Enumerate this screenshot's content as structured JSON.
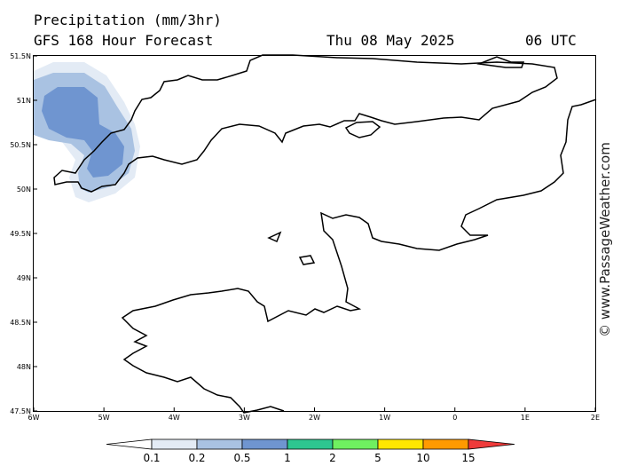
{
  "header": {
    "title_line1": "Precipitation (mm/3hr)",
    "title_line2": "GFS 168 Hour Forecast",
    "date": "Thu 08 May 2025",
    "time": "06 UTC"
  },
  "map": {
    "lat_ticks": [
      "51.5N",
      "51N",
      "50.5N",
      "50N",
      "49.5N",
      "49N",
      "48.5N",
      "48N",
      "47.5N"
    ],
    "lon_ticks": [
      "6W",
      "5W",
      "4W",
      "3W",
      "2W",
      "1W",
      "0",
      "1E",
      "2E"
    ],
    "extent": {
      "lon_min": -6,
      "lon_max": 2,
      "lat_min": 47.5,
      "lat_max": 51.5
    }
  },
  "colorbar": {
    "labels": [
      "0.1",
      "0.2",
      "0.5",
      "1",
      "2",
      "5",
      "10",
      "15"
    ],
    "colors": [
      "#ffffff",
      "#e3ebf5",
      "#a9c2e2",
      "#6f95d0",
      "#2ec690",
      "#6ff060",
      "#ffe600",
      "#ff9a00",
      "#ef3a3a"
    ]
  },
  "credit": "© www.PassageWeather.com"
}
